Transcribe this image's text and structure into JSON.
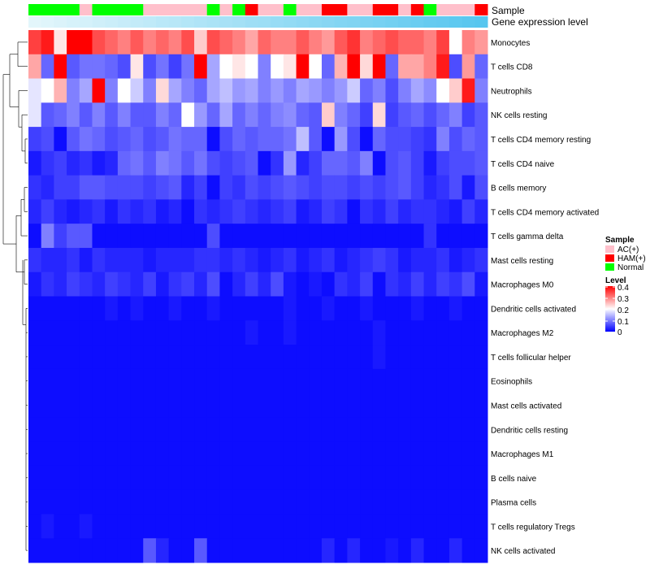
{
  "chart_data": {
    "type": "heatmap",
    "title": "",
    "annotation_tracks": [
      "Sample",
      "Gene expression level"
    ],
    "sample_groups": [
      "N",
      "N",
      "N",
      "N",
      "A",
      "N",
      "N",
      "N",
      "N",
      "A",
      "A",
      "A",
      "A",
      "A",
      "N",
      "A",
      "N",
      "H",
      "A",
      "A",
      "N",
      "A",
      "A",
      "H",
      "H",
      "A",
      "A",
      "H",
      "H",
      "A",
      "H",
      "N",
      "A",
      "A",
      "A",
      "H"
    ],
    "expression_level": [
      0.0,
      0.03,
      0.06,
      0.09,
      0.11,
      0.14,
      0.17,
      0.2,
      0.23,
      0.26,
      0.29,
      0.31,
      0.34,
      0.37,
      0.4,
      0.43,
      0.46,
      0.49,
      0.51,
      0.54,
      0.57,
      0.6,
      0.63,
      0.66,
      0.69,
      0.71,
      0.74,
      0.77,
      0.8,
      0.83,
      0.86,
      0.89,
      0.91,
      0.94,
      0.97,
      1.0
    ],
    "rows": [
      "Monocytes",
      "T cells CD8",
      "Neutrophils",
      "NK cells resting",
      "T cells CD4 memory resting",
      "T cells CD4 naive",
      "B cells memory",
      "T cells CD4 memory activated",
      "T cells gamma delta",
      "Mast cells resting",
      "Macrophages M0",
      "Dendritic cells activated",
      "Macrophages M2",
      "T cells follicular helper",
      "Eosinophils",
      "Mast cells activated",
      "Dendritic cells resting",
      "Macrophages M1",
      "B cells naive",
      "Plasma cells",
      "T cells regulatory  Tregs",
      "NK cells activated"
    ],
    "values": [
      [
        0.35,
        0.38,
        0.22,
        0.4,
        0.4,
        0.34,
        0.32,
        0.3,
        0.33,
        0.3,
        0.32,
        0.3,
        0.34,
        0.24,
        0.34,
        0.32,
        0.3,
        0.27,
        0.32,
        0.3,
        0.3,
        0.33,
        0.3,
        0.28,
        0.33,
        0.36,
        0.3,
        0.32,
        0.34,
        0.32,
        0.32,
        0.3,
        0.35,
        0.2,
        0.3,
        0.28
      ],
      [
        0.27,
        0.08,
        0.4,
        0.07,
        0.09,
        0.09,
        0.08,
        0.06,
        0.22,
        0.06,
        0.09,
        0.05,
        0.09,
        0.4,
        0.13,
        0.2,
        0.22,
        0.2,
        0.1,
        0.2,
        0.22,
        0.4,
        0.2,
        0.08,
        0.26,
        0.4,
        0.23,
        0.4,
        0.08,
        0.27,
        0.27,
        0.3,
        0.38,
        0.06,
        0.28,
        0.08
      ],
      [
        0.18,
        0.2,
        0.26,
        0.1,
        0.13,
        0.4,
        0.1,
        0.2,
        0.16,
        0.1,
        0.23,
        0.13,
        0.1,
        0.08,
        0.13,
        0.15,
        0.12,
        0.13,
        0.1,
        0.12,
        0.1,
        0.13,
        0.12,
        0.1,
        0.12,
        0.16,
        0.08,
        0.1,
        0.06,
        0.1,
        0.13,
        0.11,
        0.2,
        0.24,
        0.38,
        0.1
      ],
      [
        0.18,
        0.07,
        0.08,
        0.1,
        0.07,
        0.1,
        0.07,
        0.1,
        0.07,
        0.07,
        0.1,
        0.08,
        0.2,
        0.12,
        0.08,
        0.13,
        0.08,
        0.1,
        0.08,
        0.1,
        0.11,
        0.08,
        0.07,
        0.24,
        0.1,
        0.08,
        0.05,
        0.23,
        0.05,
        0.07,
        0.08,
        0.06,
        0.08,
        0.1,
        0.05,
        0.07
      ],
      [
        0.05,
        0.06,
        0.01,
        0.07,
        0.09,
        0.08,
        0.06,
        0.07,
        0.08,
        0.06,
        0.07,
        0.09,
        0.08,
        0.08,
        0.01,
        0.06,
        0.08,
        0.07,
        0.08,
        0.08,
        0.09,
        0.15,
        0.07,
        0.01,
        0.12,
        0.06,
        0.01,
        0.08,
        0.06,
        0.06,
        0.05,
        0.04,
        0.1,
        0.06,
        0.08,
        0.07
      ],
      [
        0.02,
        0.04,
        0.05,
        0.03,
        0.04,
        0.02,
        0.03,
        0.08,
        0.09,
        0.07,
        0.1,
        0.09,
        0.07,
        0.09,
        0.06,
        0.05,
        0.06,
        0.07,
        0.01,
        0.04,
        0.12,
        0.03,
        0.05,
        0.08,
        0.08,
        0.07,
        0.1,
        0.01,
        0.06,
        0.07,
        0.05,
        0.02,
        0.05,
        0.06,
        0.06,
        0.07
      ],
      [
        0.04,
        0.03,
        0.05,
        0.05,
        0.07,
        0.07,
        0.06,
        0.06,
        0.06,
        0.05,
        0.06,
        0.07,
        0.03,
        0.05,
        0.01,
        0.05,
        0.04,
        0.06,
        0.05,
        0.06,
        0.07,
        0.06,
        0.05,
        0.06,
        0.06,
        0.05,
        0.06,
        0.05,
        0.06,
        0.07,
        0.05,
        0.03,
        0.04,
        0.06,
        0.02,
        0.06
      ],
      [
        0.03,
        0.05,
        0.03,
        0.02,
        0.03,
        0.04,
        0.02,
        0.04,
        0.03,
        0.04,
        0.02,
        0.03,
        0.01,
        0.04,
        0.03,
        0.04,
        0.05,
        0.04,
        0.03,
        0.04,
        0.05,
        0.02,
        0.03,
        0.05,
        0.04,
        0.01,
        0.04,
        0.03,
        0.05,
        0.03,
        0.04,
        0.04,
        0.03,
        0.02,
        0.05,
        0.03
      ],
      [
        0.01,
        0.1,
        0.05,
        0.07,
        0.07,
        0.01,
        0.01,
        0.01,
        0.01,
        0.01,
        0.01,
        0.01,
        0.01,
        0.01,
        0.06,
        0.01,
        0.01,
        0.01,
        0.01,
        0.01,
        0.01,
        0.01,
        0.01,
        0.01,
        0.01,
        0.01,
        0.01,
        0.01,
        0.01,
        0.01,
        0.01,
        0.04,
        0.01,
        0.01,
        0.01,
        0.01
      ],
      [
        0.04,
        0.03,
        0.03,
        0.04,
        0.02,
        0.04,
        0.03,
        0.03,
        0.03,
        0.02,
        0.03,
        0.03,
        0.03,
        0.04,
        0.04,
        0.03,
        0.04,
        0.03,
        0.02,
        0.03,
        0.04,
        0.02,
        0.03,
        0.04,
        0.02,
        0.03,
        0.04,
        0.05,
        0.04,
        0.02,
        0.03,
        0.03,
        0.04,
        0.02,
        0.03,
        0.04
      ],
      [
        0.02,
        0.04,
        0.03,
        0.05,
        0.04,
        0.03,
        0.05,
        0.04,
        0.03,
        0.05,
        0.02,
        0.04,
        0.05,
        0.03,
        0.06,
        0.01,
        0.03,
        0.05,
        0.03,
        0.06,
        0.02,
        0.01,
        0.02,
        0.01,
        0.04,
        0.03,
        0.05,
        0.01,
        0.04,
        0.03,
        0.05,
        0.03,
        0.05,
        0.04,
        0.06,
        0.02
      ],
      [
        0.01,
        0.01,
        0.01,
        0.01,
        0.01,
        0.01,
        0.02,
        0.01,
        0.02,
        0.01,
        0.01,
        0.02,
        0.01,
        0.01,
        0.02,
        0.01,
        0.01,
        0.01,
        0.01,
        0.01,
        0.02,
        0.01,
        0.01,
        0.02,
        0.01,
        0.01,
        0.02,
        0.01,
        0.01,
        0.01,
        0.02,
        0.01,
        0.01,
        0.02,
        0.01,
        0.01
      ],
      [
        0.01,
        0.01,
        0.01,
        0.01,
        0.01,
        0.01,
        0.01,
        0.01,
        0.01,
        0.01,
        0.01,
        0.01,
        0.01,
        0.01,
        0.01,
        0.01,
        0.01,
        0.02,
        0.01,
        0.01,
        0.02,
        0.01,
        0.01,
        0.01,
        0.01,
        0.01,
        0.01,
        0.02,
        0.01,
        0.01,
        0.01,
        0.01,
        0.01,
        0.01,
        0.01,
        0.01
      ],
      [
        0.01,
        0.01,
        0.01,
        0.01,
        0.01,
        0.01,
        0.01,
        0.01,
        0.01,
        0.01,
        0.01,
        0.01,
        0.01,
        0.01,
        0.01,
        0.01,
        0.01,
        0.01,
        0.01,
        0.01,
        0.01,
        0.01,
        0.01,
        0.01,
        0.01,
        0.01,
        0.01,
        0.02,
        0.01,
        0.01,
        0.01,
        0.01,
        0.01,
        0.01,
        0.01,
        0.01
      ],
      [
        0.01,
        0.01,
        0.01,
        0.01,
        0.01,
        0.01,
        0.01,
        0.01,
        0.01,
        0.01,
        0.01,
        0.01,
        0.01,
        0.01,
        0.01,
        0.01,
        0.01,
        0.01,
        0.01,
        0.01,
        0.01,
        0.01,
        0.01,
        0.01,
        0.01,
        0.01,
        0.01,
        0.01,
        0.01,
        0.01,
        0.01,
        0.01,
        0.01,
        0.01,
        0.01,
        0.01
      ],
      [
        0.01,
        0.01,
        0.01,
        0.01,
        0.01,
        0.01,
        0.01,
        0.01,
        0.01,
        0.01,
        0.01,
        0.01,
        0.01,
        0.01,
        0.01,
        0.01,
        0.01,
        0.01,
        0.01,
        0.01,
        0.01,
        0.01,
        0.01,
        0.01,
        0.01,
        0.01,
        0.01,
        0.01,
        0.01,
        0.01,
        0.01,
        0.01,
        0.01,
        0.01,
        0.01,
        0.01
      ],
      [
        0.01,
        0.01,
        0.01,
        0.01,
        0.01,
        0.01,
        0.01,
        0.01,
        0.01,
        0.01,
        0.01,
        0.01,
        0.01,
        0.01,
        0.01,
        0.01,
        0.01,
        0.01,
        0.01,
        0.01,
        0.01,
        0.01,
        0.01,
        0.01,
        0.01,
        0.01,
        0.01,
        0.01,
        0.01,
        0.01,
        0.01,
        0.01,
        0.01,
        0.01,
        0.01,
        0.01
      ],
      [
        0.01,
        0.01,
        0.01,
        0.01,
        0.01,
        0.01,
        0.01,
        0.01,
        0.01,
        0.01,
        0.01,
        0.01,
        0.01,
        0.01,
        0.01,
        0.01,
        0.01,
        0.01,
        0.01,
        0.01,
        0.01,
        0.01,
        0.01,
        0.01,
        0.01,
        0.01,
        0.01,
        0.01,
        0.01,
        0.01,
        0.01,
        0.01,
        0.01,
        0.01,
        0.01,
        0.01
      ],
      [
        0.01,
        0.01,
        0.01,
        0.01,
        0.01,
        0.01,
        0.01,
        0.01,
        0.01,
        0.01,
        0.01,
        0.01,
        0.01,
        0.01,
        0.01,
        0.01,
        0.01,
        0.01,
        0.01,
        0.01,
        0.01,
        0.01,
        0.01,
        0.01,
        0.01,
        0.01,
        0.01,
        0.01,
        0.01,
        0.01,
        0.01,
        0.01,
        0.01,
        0.01,
        0.01,
        0.01
      ],
      [
        0.01,
        0.01,
        0.01,
        0.01,
        0.01,
        0.01,
        0.01,
        0.01,
        0.01,
        0.01,
        0.01,
        0.01,
        0.01,
        0.01,
        0.01,
        0.01,
        0.01,
        0.01,
        0.01,
        0.01,
        0.01,
        0.01,
        0.01,
        0.01,
        0.01,
        0.01,
        0.01,
        0.01,
        0.01,
        0.01,
        0.01,
        0.01,
        0.01,
        0.01,
        0.01,
        0.01
      ],
      [
        0.01,
        0.02,
        0.01,
        0.01,
        0.02,
        0.01,
        0.01,
        0.01,
        0.01,
        0.01,
        0.01,
        0.01,
        0.01,
        0.01,
        0.01,
        0.01,
        0.01,
        0.01,
        0.01,
        0.01,
        0.01,
        0.01,
        0.01,
        0.01,
        0.01,
        0.01,
        0.01,
        0.01,
        0.01,
        0.01,
        0.01,
        0.01,
        0.01,
        0.01,
        0.01,
        0.01
      ],
      [
        0.01,
        0.01,
        0.01,
        0.01,
        0.01,
        0.01,
        0.01,
        0.01,
        0.01,
        0.07,
        0.03,
        0.01,
        0.01,
        0.07,
        0.01,
        0.01,
        0.01,
        0.01,
        0.01,
        0.01,
        0.01,
        0.01,
        0.01,
        0.03,
        0.01,
        0.03,
        0.01,
        0.01,
        0.02,
        0.01,
        0.03,
        0.01,
        0.01,
        0.03,
        0.01,
        0.01
      ]
    ],
    "legends": {
      "sample": {
        "title": "Sample",
        "entries": [
          {
            "code": "A",
            "label": "AC(+)",
            "color": "#ffc0cb"
          },
          {
            "code": "H",
            "label": "HAM(+)",
            "color": "#ff0000"
          },
          {
            "code": "N",
            "label": "Normal",
            "color": "#00ff00"
          }
        ]
      },
      "level": {
        "title": "Level",
        "ticks": [
          "0.4",
          "0.3",
          "0.2",
          "0.1",
          "0"
        ],
        "range": [
          0,
          0.4
        ],
        "colors": {
          "low": "#0000ff",
          "mid": "#ffffff",
          "high": "#ff0000"
        }
      }
    },
    "expression_colors": {
      "low": "#e3f6fb",
      "high": "#57c6ef"
    }
  }
}
